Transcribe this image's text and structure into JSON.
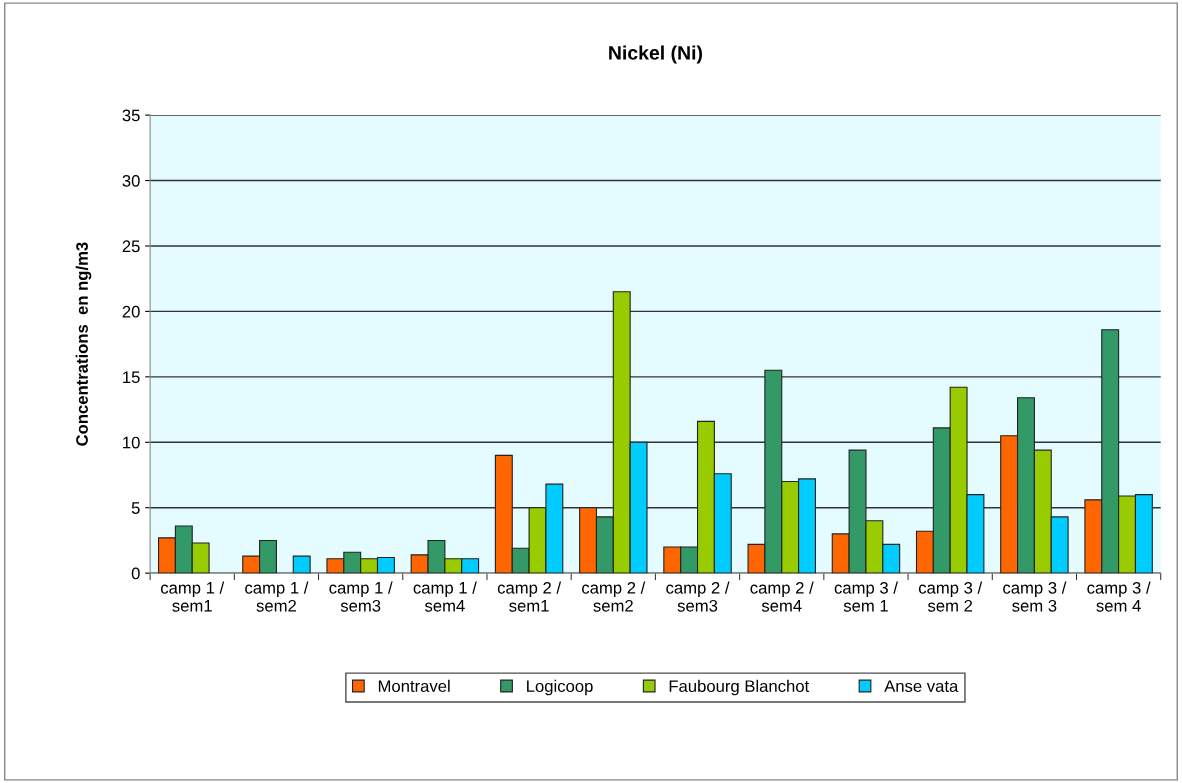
{
  "chart_data": {
    "type": "bar",
    "title": "Nickel (Ni)",
    "ylabel": "Concentrations  en ng/m3",
    "categories": [
      "camp 1 /\nsem1",
      "camp 1 /\nsem2",
      "camp 1 /\nsem3",
      "camp 1 /\nsem4",
      "camp 2 /\nsem1",
      "camp 2 /\nsem2",
      "camp 2 /\nsem3",
      "camp 2 /\nsem4",
      "camp 3 /\nsem 1",
      "camp 3 /\nsem 2",
      "camp 3 /\nsem 3",
      "camp 3 /\nsem 4"
    ],
    "series": [
      {
        "name": "Montravel",
        "color": "#ff6600",
        "values": [
          2.7,
          1.3,
          1.1,
          1.4,
          9.0,
          5.0,
          2.0,
          2.2,
          3.0,
          3.2,
          10.5,
          5.6
        ]
      },
      {
        "name": "Logicoop",
        "color": "#339966",
        "values": [
          3.6,
          2.5,
          1.6,
          2.5,
          1.9,
          4.3,
          2.0,
          15.5,
          9.4,
          11.1,
          13.4,
          18.6
        ]
      },
      {
        "name": "Faubourg Blanchot",
        "color": "#99cc00",
        "values": [
          2.3,
          null,
          1.1,
          1.1,
          5.0,
          21.5,
          11.6,
          7.0,
          4.0,
          14.2,
          9.4,
          5.9
        ]
      },
      {
        "name": "Anse vata",
        "color": "#00ccff",
        "values": [
          null,
          1.3,
          1.2,
          1.1,
          6.8,
          10.0,
          7.6,
          7.2,
          2.2,
          6.0,
          4.3,
          6.0
        ]
      }
    ],
    "ylim": [
      0,
      35
    ],
    "yticks": [
      0,
      5,
      10,
      15,
      20,
      25,
      30,
      35
    ],
    "grid": "y",
    "legend": "bottom"
  }
}
